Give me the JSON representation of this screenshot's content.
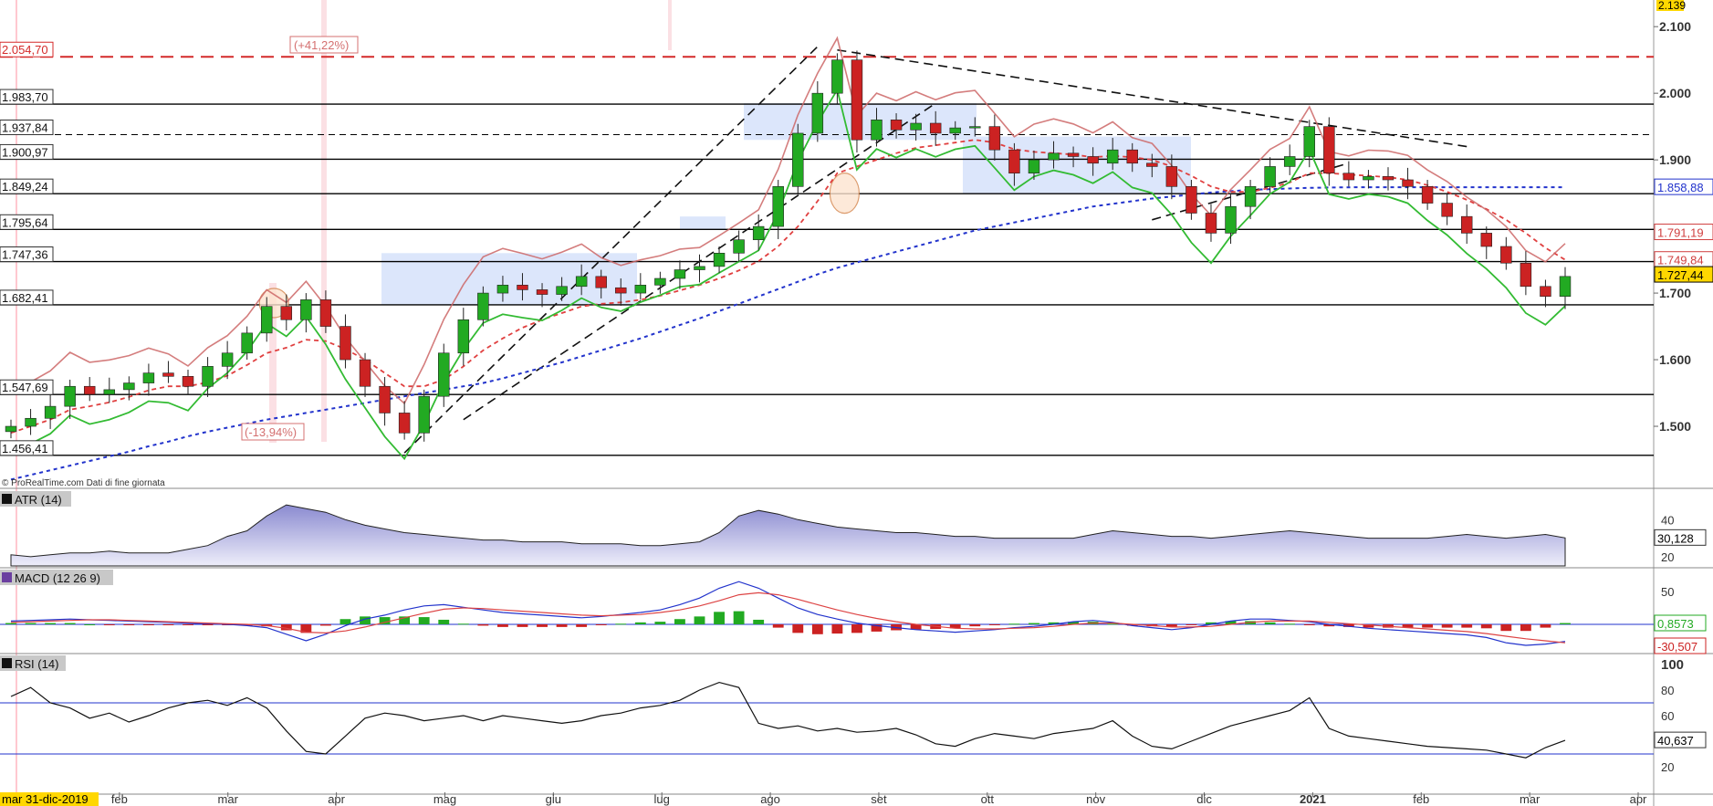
{
  "chart_data": [
    {
      "type": "candlestick",
      "panel": "price",
      "colors": {
        "up": "#22aa22",
        "down": "#cc2222",
        "band": "#dce6fb",
        "hline": "#000000"
      },
      "xlabels": [
        "mar 31-dic-2019",
        "feb",
        "mar",
        "apr",
        "mag",
        "giu",
        "lug",
        "ago",
        "set",
        "ott",
        "nov",
        "dic",
        "2021",
        "feb",
        "mar",
        "apr"
      ],
      "y_ticks": [
        "2.100",
        "2.000",
        "1.900",
        "1.700",
        "1.600",
        "1.500"
      ],
      "ylim": [
        1400,
        2140
      ],
      "top_value": "2.139",
      "left_levels": [
        {
          "label": "2.054,70",
          "value": 2054.7,
          "style": "red-dashed"
        },
        {
          "label": "1.983,70",
          "value": 1983.7,
          "style": "solid"
        },
        {
          "label": "1.937,84",
          "value": 1937.84,
          "style": "dashed"
        },
        {
          "label": "1.900,97",
          "value": 1900.97,
          "style": "solid"
        },
        {
          "label": "1.849,24",
          "value": 1849.24,
          "style": "solid"
        },
        {
          "label": "1.795,64",
          "value": 1795.64,
          "style": "solid"
        },
        {
          "label": "1.747,36",
          "value": 1747.36,
          "style": "solid"
        },
        {
          "label": "1.682,41",
          "value": 1682.41,
          "style": "solid"
        },
        {
          "label": "1.547,69",
          "value": 1547.69,
          "style": "solid"
        },
        {
          "label": "1.456,41",
          "value": 1456.41,
          "style": "solid"
        }
      ],
      "right_labels": [
        {
          "label": "1.858,88",
          "value": 1858.88,
          "color": "#2233cc",
          "bg": "#ffffff"
        },
        {
          "label": "1.791,19",
          "value": 1791.19,
          "color": "#d04040",
          "bg": "#ffffff"
        },
        {
          "label": "1.749,84",
          "value": 1749.84,
          "color": "#d04040",
          "bg": "#ffffff"
        },
        {
          "label": "1.727,44",
          "value": 1727.44,
          "color": "#000000",
          "bg": "#ffd700"
        }
      ],
      "annotations": [
        "(+41,22%)",
        "(-13,94%)"
      ],
      "source_note": "© ProRealTime.com  Dati di fine giornata",
      "series_close": [
        1500,
        1512,
        1530,
        1560,
        1548,
        1555,
        1565,
        1580,
        1575,
        1560,
        1590,
        1610,
        1640,
        1680,
        1660,
        1690,
        1650,
        1600,
        1560,
        1520,
        1490,
        1545,
        1610,
        1660,
        1700,
        1712,
        1705,
        1698,
        1710,
        1725,
        1708,
        1700,
        1712,
        1722,
        1735,
        1740,
        1760,
        1780,
        1800,
        1860,
        1940,
        2000,
        2050,
        1930,
        1960,
        1945,
        1955,
        1940,
        1948,
        1950,
        1915,
        1880,
        1900,
        1910,
        1905,
        1895,
        1915,
        1895,
        1890,
        1860,
        1820,
        1790,
        1830,
        1860,
        1890,
        1905,
        1950,
        1880,
        1870,
        1875,
        1870,
        1860,
        1835,
        1815,
        1790,
        1770,
        1745,
        1710,
        1695,
        1725
      ],
      "sma200": [
        1420,
        1427,
        1434,
        1441,
        1448,
        1455,
        1462,
        1470,
        1477,
        1485,
        1492,
        1498,
        1504,
        1510,
        1515,
        1520,
        1525,
        1530,
        1535,
        1540,
        1545,
        1550,
        1555,
        1560,
        1565,
        1572,
        1580,
        1588,
        1596,
        1605,
        1614,
        1623,
        1632,
        1642,
        1652,
        1662,
        1673,
        1684,
        1695,
        1706,
        1717,
        1728,
        1738,
        1746,
        1754,
        1762,
        1770,
        1778,
        1786,
        1794,
        1800,
        1806,
        1812,
        1818,
        1824,
        1830,
        1834,
        1838,
        1842,
        1845,
        1848,
        1851,
        1853,
        1855,
        1856,
        1857,
        1858,
        1858.5,
        1858.8,
        1858.9,
        1858.9,
        1858.9,
        1858.9,
        1858.9,
        1858.9,
        1858.9,
        1858.9,
        1858.9,
        1858.9,
        1858.88
      ],
      "ema20": [
        1490,
        1500,
        1510,
        1525,
        1530,
        1536,
        1544,
        1554,
        1560,
        1560,
        1566,
        1576,
        1592,
        1610,
        1618,
        1630,
        1628,
        1616,
        1600,
        1580,
        1560,
        1560,
        1570,
        1590,
        1614,
        1632,
        1648,
        1660,
        1670,
        1680,
        1684,
        1686,
        1690,
        1696,
        1704,
        1712,
        1722,
        1734,
        1748,
        1770,
        1800,
        1838,
        1880,
        1890,
        1900,
        1910,
        1918,
        1922,
        1926,
        1930,
        1926,
        1916,
        1912,
        1910,
        1908,
        1904,
        1906,
        1904,
        1900,
        1890,
        1876,
        1860,
        1852,
        1852,
        1858,
        1866,
        1880,
        1880,
        1878,
        1876,
        1874,
        1870,
        1862,
        1852,
        1840,
        1826,
        1810,
        1790,
        1768,
        1750
      ]
    },
    {
      "type": "area",
      "panel": "ATR",
      "label": "ATR (14)",
      "y_ticks": [
        "40",
        "20"
      ],
      "ylim": [
        15,
        52
      ],
      "last_value": "30,128",
      "values": [
        21,
        20,
        21,
        22,
        22,
        23,
        22,
        22,
        22,
        24,
        26,
        31,
        34,
        42,
        48,
        46,
        44,
        40,
        37,
        35,
        33,
        32,
        31,
        30,
        29,
        29,
        28,
        28,
        28,
        27,
        27,
        27,
        26,
        26,
        27,
        28,
        33,
        42,
        45,
        43,
        40,
        38,
        36,
        35,
        34,
        33,
        33,
        32,
        31,
        31,
        30,
        30,
        30,
        30,
        30,
        32,
        34,
        33,
        32,
        31,
        31,
        30,
        31,
        32,
        33,
        34,
        33,
        32,
        31,
        30,
        30,
        30,
        30,
        31,
        32,
        31,
        30,
        31,
        32,
        30.128
      ]
    },
    {
      "type": "macd",
      "panel": "MACD",
      "label": "MACD (12 26 9)",
      "y_ticks": [
        "50"
      ],
      "ylim": [
        -40,
        70
      ],
      "last_values": [
        "0,8573",
        "-30,507"
      ],
      "macd": [
        5,
        6,
        7,
        8,
        7,
        6,
        5,
        4,
        3,
        2,
        1,
        0,
        -2,
        -5,
        -15,
        -25,
        -15,
        -2,
        8,
        14,
        22,
        28,
        30,
        26,
        22,
        18,
        16,
        14,
        12,
        10,
        12,
        15,
        18,
        22,
        30,
        40,
        55,
        65,
        55,
        40,
        25,
        15,
        8,
        2,
        -2,
        -5,
        -8,
        -10,
        -12,
        -10,
        -8,
        -5,
        -3,
        0,
        4,
        6,
        3,
        -2,
        -5,
        -8,
        -5,
        0,
        5,
        8,
        8,
        6,
        4,
        0,
        -3,
        -6,
        -8,
        -10,
        -12,
        -14,
        -16,
        -20,
        -28,
        -32,
        -30,
        -26
      ],
      "signal": [
        3,
        4,
        5,
        6,
        7,
        7,
        6,
        5,
        4,
        3,
        2,
        1,
        0,
        -2,
        -6,
        -12,
        -13,
        -10,
        -4,
        3,
        10,
        17,
        23,
        25,
        24,
        22,
        20,
        18,
        16,
        14,
        13,
        14,
        15,
        18,
        22,
        28,
        36,
        45,
        48,
        45,
        38,
        30,
        22,
        15,
        9,
        4,
        0,
        -3,
        -6,
        -7,
        -7,
        -6,
        -5,
        -3,
        0,
        2,
        2,
        0,
        -2,
        -4,
        -4,
        -3,
        0,
        3,
        5,
        5,
        5,
        3,
        1,
        -1,
        -3,
        -5,
        -7,
        -9,
        -11,
        -14,
        -18,
        -22,
        -25,
        -28
      ],
      "histogram": [
        2,
        2,
        2,
        2,
        0,
        -1,
        -1,
        -1,
        -1,
        -1,
        -1,
        -1,
        -2,
        -3,
        -9,
        -13,
        -2,
        8,
        12,
        11,
        12,
        11,
        7,
        1,
        -2,
        -4,
        -4,
        -4,
        -4,
        -4,
        -1,
        1,
        3,
        4,
        8,
        12,
        19,
        20,
        7,
        -5,
        -13,
        -15,
        -14,
        -13,
        -11,
        -9,
        -8,
        -7,
        -6,
        -3,
        -1,
        1,
        2,
        3,
        4,
        4,
        1,
        -2,
        -3,
        -4,
        -1,
        3,
        5,
        5,
        3,
        1,
        -1,
        -3,
        -4,
        -5,
        -5,
        -5,
        -5,
        -5,
        -5,
        -6,
        -10,
        -10,
        -5,
        2
      ]
    },
    {
      "type": "line",
      "panel": "RSI",
      "label": "RSI (14)",
      "y_ticks": [
        "100",
        "80",
        "60",
        "40",
        "20"
      ],
      "ylim": [
        0,
        100
      ],
      "levels": [
        70,
        30
      ],
      "last_value": "40,637",
      "values": [
        75,
        82,
        70,
        66,
        58,
        62,
        55,
        60,
        66,
        70,
        72,
        68,
        74,
        66,
        48,
        32,
        30,
        44,
        58,
        62,
        60,
        56,
        58,
        60,
        56,
        60,
        58,
        56,
        54,
        56,
        60,
        62,
        66,
        68,
        72,
        80,
        86,
        82,
        54,
        50,
        52,
        48,
        50,
        47,
        48,
        50,
        45,
        38,
        36,
        42,
        46,
        44,
        42,
        46,
        48,
        50,
        56,
        44,
        36,
        34,
        40,
        46,
        52,
        56,
        60,
        64,
        74,
        50,
        44,
        42,
        40,
        38,
        36,
        35,
        34,
        33,
        30,
        27,
        35,
        40.637
      ]
    }
  ]
}
